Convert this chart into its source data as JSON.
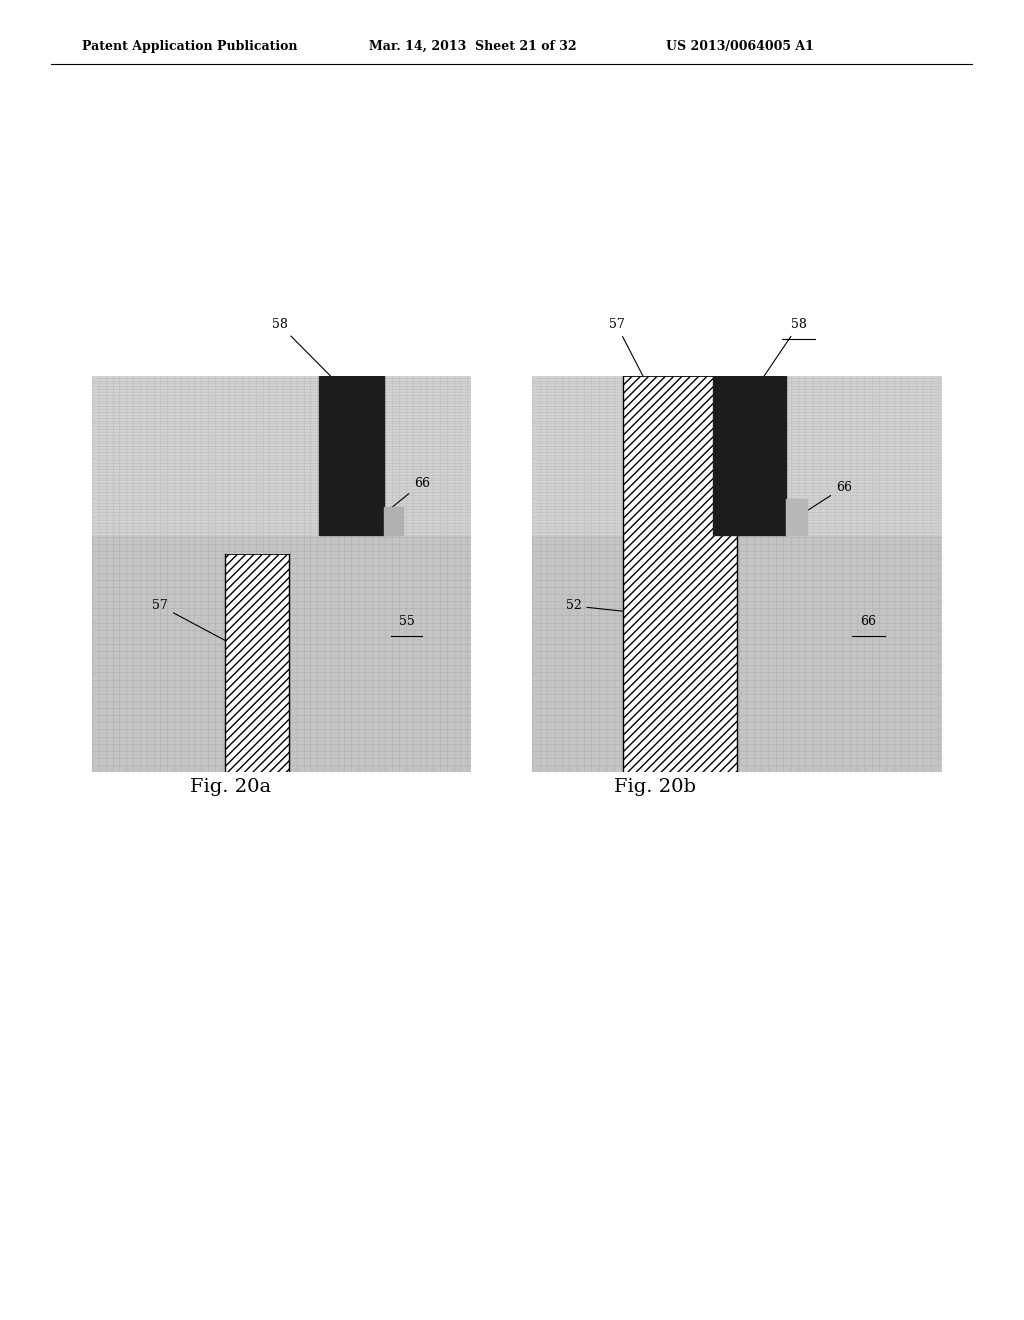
{
  "title_left": "Patent Application Publication",
  "title_mid": "Mar. 14, 2013  Sheet 21 of 32",
  "title_right": "US 2013/0064005 A1",
  "fig_a_label": "Fig. 20a",
  "fig_b_label": "Fig. 20b",
  "bg_color": "#ffffff"
}
